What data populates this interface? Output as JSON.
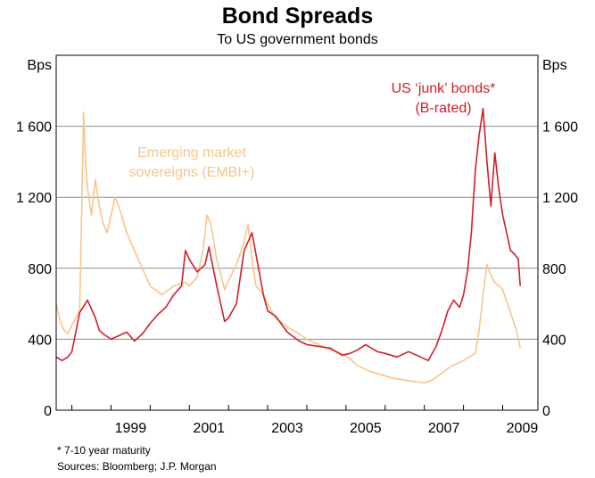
{
  "chart_data": {
    "type": "line",
    "title": "Bond Spreads",
    "subtitle": "To US government bonds",
    "ylabel_left": "Bps",
    "ylabel_right": "Bps",
    "ylim": [
      0,
      2000
    ],
    "yticks": [
      0,
      400,
      800,
      1200,
      1600
    ],
    "ytick_labels": [
      "0",
      "400",
      "800",
      "1 200",
      "1 600"
    ],
    "xlim": [
      1997.6,
      2009.9
    ],
    "xticks": [
      1999,
      2001,
      2003,
      2005,
      2007,
      2009
    ],
    "xtick_labels": [
      "1999",
      "2001",
      "2003",
      "2005",
      "2007",
      "2009"
    ],
    "xminor": [
      1998,
      1999,
      2000,
      2001,
      2002,
      2003,
      2004,
      2005,
      2006,
      2007,
      2008,
      2009
    ],
    "series": [
      {
        "name": "US 'junk' bonds*\n(B-rated)",
        "label_lines": [
          "US ‘junk’ bonds*",
          "(B-rated)"
        ],
        "color": "#d0202a",
        "x": [
          1997.6,
          1997.75,
          1997.9,
          1998.0,
          1998.2,
          1998.4,
          1998.6,
          1998.7,
          1998.8,
          1999.0,
          1999.2,
          1999.4,
          1999.6,
          1999.8,
          2000.0,
          2000.2,
          2000.4,
          2000.6,
          2000.8,
          2000.9,
          2001.0,
          2001.2,
          2001.4,
          2001.5,
          2001.7,
          2001.9,
          2002.0,
          2002.2,
          2002.4,
          2002.6,
          2002.75,
          2002.9,
          2003.0,
          2003.2,
          2003.5,
          2003.8,
          2004.0,
          2004.3,
          2004.6,
          2004.9,
          2005.1,
          2005.3,
          2005.5,
          2005.8,
          2006.0,
          2006.3,
          2006.6,
          2006.9,
          2007.1,
          2007.3,
          2007.45,
          2007.6,
          2007.75,
          2007.9,
          2008.0,
          2008.1,
          2008.2,
          2008.3,
          2008.4,
          2008.5,
          2008.6,
          2008.7,
          2008.8,
          2008.9,
          2009.0,
          2009.1,
          2009.2,
          2009.3,
          2009.4,
          2009.45
        ],
        "y": [
          300,
          280,
          300,
          330,
          550,
          620,
          520,
          450,
          430,
          400,
          420,
          440,
          390,
          430,
          490,
          540,
          580,
          650,
          700,
          900,
          850,
          780,
          820,
          920,
          700,
          500,
          520,
          600,
          900,
          1000,
          820,
          640,
          560,
          530,
          440,
          390,
          370,
          360,
          350,
          310,
          320,
          340,
          370,
          330,
          320,
          300,
          330,
          300,
          280,
          360,
          450,
          560,
          620,
          580,
          650,
          780,
          1000,
          1350,
          1550,
          1700,
          1400,
          1150,
          1450,
          1250,
          1100,
          1000,
          900,
          880,
          850,
          700
        ]
      },
      {
        "name": "Emerging market sovereigns (EMBI+)",
        "label_lines": [
          "Emerging market",
          "sovereigns (EMBI+)"
        ],
        "color": "#f9c48b",
        "x": [
          1997.6,
          1997.7,
          1997.8,
          1997.9,
          1998.0,
          1998.1,
          1998.2,
          1998.25,
          1998.3,
          1998.35,
          1998.4,
          1998.5,
          1998.6,
          1998.7,
          1998.8,
          1998.9,
          1999.0,
          1999.1,
          1999.2,
          1999.4,
          1999.6,
          1999.8,
          2000.0,
          2000.3,
          2000.6,
          2000.9,
          2001.0,
          2001.2,
          2001.35,
          2001.45,
          2001.55,
          2001.7,
          2001.9,
          2002.0,
          2002.2,
          2002.4,
          2002.5,
          2002.6,
          2002.7,
          2002.9,
          2003.0,
          2003.2,
          2003.5,
          2003.8,
          2004.0,
          2004.3,
          2004.6,
          2004.9,
          2005.1,
          2005.3,
          2005.6,
          2005.9,
          2006.2,
          2006.5,
          2006.8,
          2007.0,
          2007.2,
          2007.45,
          2007.7,
          2008.0,
          2008.15,
          2008.3,
          2008.4,
          2008.5,
          2008.6,
          2008.7,
          2008.8,
          2009.0,
          2009.2,
          2009.35,
          2009.45
        ],
        "y": [
          600,
          500,
          450,
          430,
          480,
          520,
          560,
          1100,
          1680,
          1400,
          1250,
          1100,
          1300,
          1150,
          1050,
          1000,
          1100,
          1200,
          1150,
          1000,
          900,
          800,
          700,
          650,
          700,
          720,
          700,
          750,
          900,
          1100,
          1050,
          850,
          680,
          730,
          820,
          950,
          1050,
          850,
          700,
          650,
          600,
          520,
          470,
          430,
          400,
          370,
          340,
          320,
          290,
          250,
          220,
          200,
          180,
          170,
          160,
          155,
          170,
          210,
          250,
          280,
          300,
          320,
          450,
          650,
          820,
          760,
          720,
          680,
          550,
          450,
          350
        ]
      }
    ],
    "annotations": {
      "footnote": "*   7-10 year maturity",
      "sources": "Sources: Bloomberg; J.P. Morgan"
    }
  }
}
